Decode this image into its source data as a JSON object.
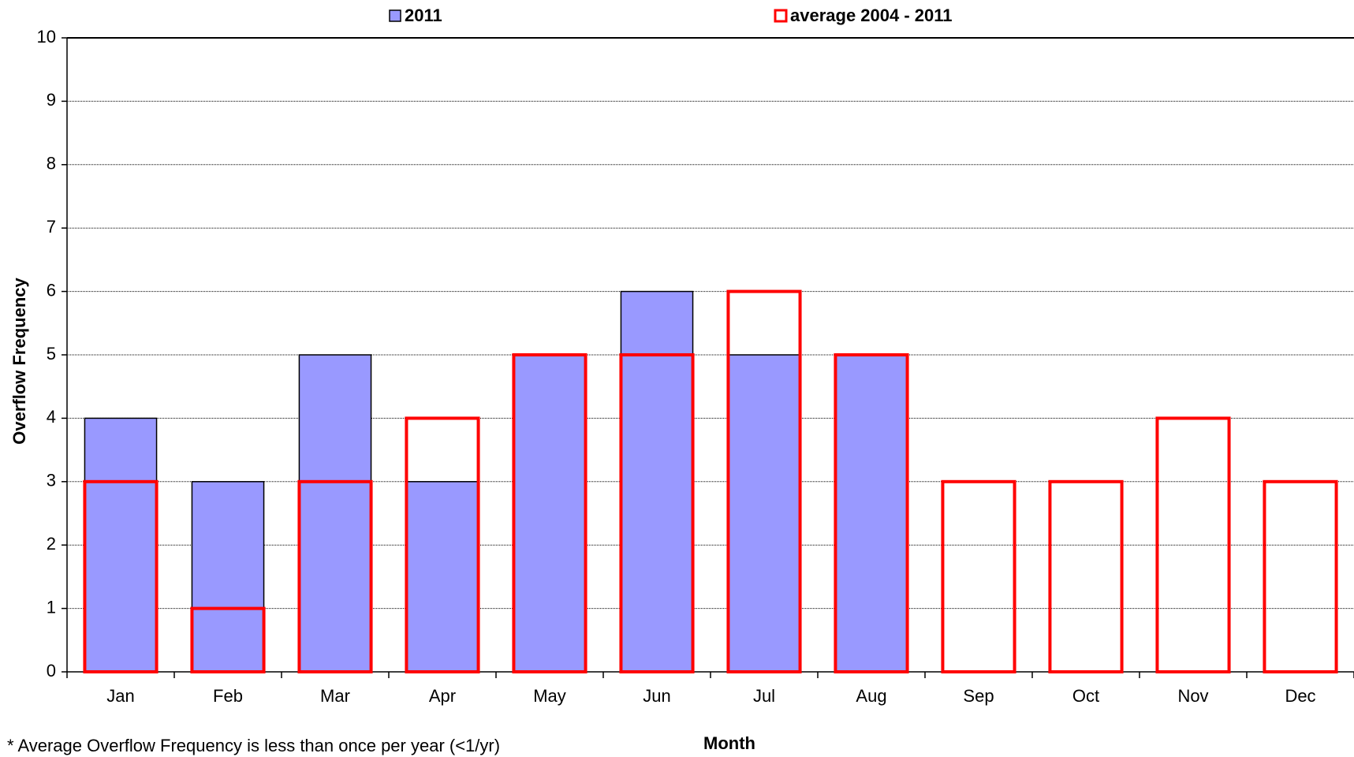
{
  "chart_data": {
    "type": "bar",
    "y_label": "Overflow Frequency",
    "x_label": "Month",
    "footnote": "* Average Overflow Frequency is less than once per year (<1/yr)",
    "categories": [
      "Jan",
      "Feb",
      "Mar",
      "Apr",
      "May",
      "Jun",
      "Jul",
      "Aug",
      "Sep",
      "Oct",
      "Nov",
      "Dec"
    ],
    "series": [
      {
        "name": "2011",
        "color": "#9999ff",
        "values": [
          4,
          3,
          5,
          3,
          5,
          6,
          5,
          5,
          null,
          null,
          null,
          null
        ]
      },
      {
        "name": "average 2004 - 2011",
        "color": "#ff0000",
        "values": [
          3,
          1,
          3,
          4,
          5,
          5,
          6,
          5,
          3,
          3,
          4,
          3
        ]
      }
    ],
    "ylim": [
      0,
      10
    ],
    "yticks": [
      0,
      1,
      2,
      3,
      4,
      5,
      6,
      7,
      8,
      9,
      10
    ],
    "grid": true
  }
}
